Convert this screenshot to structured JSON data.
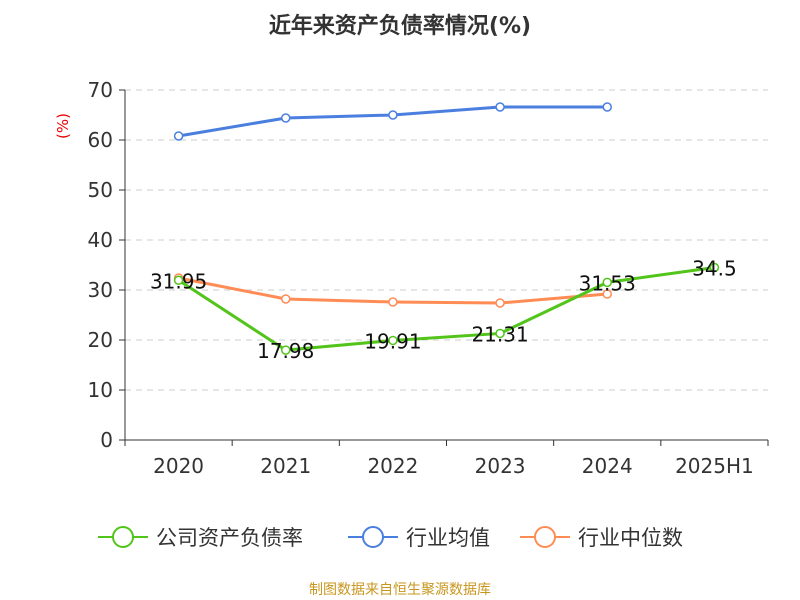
{
  "chart_data": {
    "type": "line",
    "title": "近年来资产负债率情况(%)",
    "ylabel": "(%)",
    "ylim": [
      0,
      70
    ],
    "yticks": [
      0,
      10,
      20,
      30,
      40,
      50,
      60,
      70
    ],
    "grid": true,
    "legend_placement": "bottom",
    "categories": [
      "2020",
      "2021",
      "2022",
      "2023",
      "2024",
      "2025H1"
    ],
    "series": [
      {
        "name": "公司资产负债率",
        "color": "#52c41a",
        "values": [
          31.95,
          17.98,
          19.91,
          21.31,
          31.53,
          34.5
        ],
        "labels": [
          "31.95",
          "17.98",
          "19.91",
          "21.31",
          "31.53",
          "34.5"
        ]
      },
      {
        "name": "行业均值",
        "color": "#4a7fdf",
        "values": [
          60.8,
          64.4,
          65.0,
          66.6,
          66.6,
          null
        ]
      },
      {
        "name": "行业中位数",
        "color": "#ff8c55",
        "values": [
          32.4,
          28.2,
          27.6,
          27.4,
          29.2,
          null
        ]
      }
    ],
    "source": "制图数据来自恒生聚源数据库"
  }
}
